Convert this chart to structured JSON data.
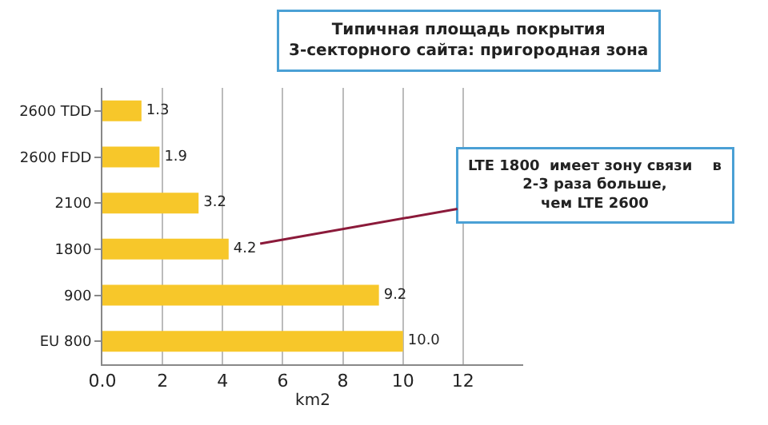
{
  "chart_data": {
    "type": "bar",
    "orientation": "horizontal",
    "title": "Типичная площадь покрытия\n3-секторного сайта: пригородная зона",
    "categories": [
      "2600 TDD",
      "2600 FDD",
      "2100",
      "1800",
      "900",
      "EU 800"
    ],
    "values": [
      1.3,
      1.9,
      3.2,
      4.2,
      9.2,
      10.0
    ],
    "value_labels": [
      "1.3",
      "1.9",
      "3.2",
      "4.2",
      "9.2",
      "10.0"
    ],
    "color": "#f7c72a",
    "xlabel": "km2",
    "xlim": [
      0,
      14
    ],
    "xticks": [
      {
        "value": 0,
        "label": "0.0"
      },
      2,
      4,
      6,
      8,
      10,
      12
    ],
    "grid": "x",
    "annotations": [
      {
        "text": "LTE 1800  имеет зону связи    в\n2-3 раза больше,\nчем LTE 2600",
        "x": 4.2,
        "y": "1800"
      }
    ]
  }
}
